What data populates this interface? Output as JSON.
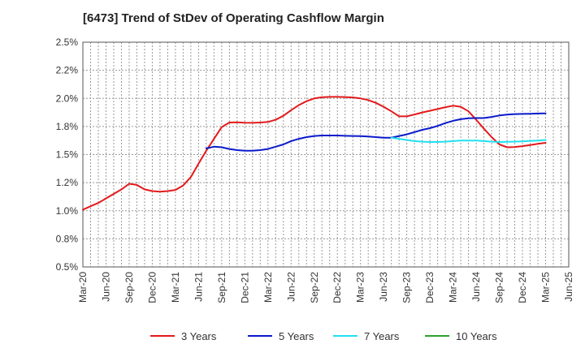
{
  "chart_data": {
    "type": "line",
    "title": "[6473]  Trend of StDev of Operating Cashflow Margin",
    "xlabel": "",
    "ylabel": "",
    "x_ticks": [
      "Mar-20",
      "Jun-20",
      "Sep-20",
      "Dec-20",
      "Mar-21",
      "Jun-21",
      "Sep-21",
      "Dec-21",
      "Mar-22",
      "Jun-22",
      "Sep-22",
      "Dec-22",
      "Mar-23",
      "Jun-23",
      "Sep-23",
      "Dec-23",
      "Mar-24",
      "Jun-24",
      "Sep-24",
      "Dec-24",
      "Mar-25",
      "Jun-25"
    ],
    "y_ticks": [
      "0.5%",
      "0.8%",
      "1.0%",
      "1.2%",
      "1.5%",
      "1.8%",
      "2.0%",
      "2.2%",
      "2.5%"
    ],
    "ylim": [
      0.5,
      2.5
    ],
    "grid": true,
    "legend_position": "bottom",
    "series": [
      {
        "name": "3 Years",
        "color": "#e31a1c",
        "points": [
          [
            "Mar-20",
            1.01
          ],
          [
            "Apr-20",
            1.04
          ],
          [
            "May-20",
            1.07
          ],
          [
            "Jun-20",
            1.11
          ],
          [
            "Jul-20",
            1.15
          ],
          [
            "Aug-20",
            1.19
          ],
          [
            "Sep-20",
            1.24
          ],
          [
            "Oct-20",
            1.23
          ],
          [
            "Nov-20",
            1.19
          ],
          [
            "Dec-20",
            1.175
          ],
          [
            "Jan-21",
            1.17
          ],
          [
            "Feb-21",
            1.175
          ],
          [
            "Mar-21",
            1.185
          ],
          [
            "Apr-21",
            1.225
          ],
          [
            "May-21",
            1.3
          ],
          [
            "Jun-21",
            1.42
          ],
          [
            "Jul-21",
            1.535
          ],
          [
            "Aug-21",
            1.64
          ],
          [
            "Sep-21",
            1.745
          ],
          [
            "Oct-21",
            1.785
          ],
          [
            "Nov-21",
            1.787
          ],
          [
            "Dec-21",
            1.783
          ],
          [
            "Jan-22",
            1.782
          ],
          [
            "Feb-22",
            1.785
          ],
          [
            "Mar-22",
            1.79
          ],
          [
            "Apr-22",
            1.81
          ],
          [
            "May-22",
            1.845
          ],
          [
            "Jun-22",
            1.895
          ],
          [
            "Jul-22",
            1.94
          ],
          [
            "Aug-22",
            1.975
          ],
          [
            "Sep-22",
            2.0
          ],
          [
            "Oct-22",
            2.01
          ],
          [
            "Nov-22",
            2.013
          ],
          [
            "Dec-22",
            2.013
          ],
          [
            "Jan-23",
            2.012
          ],
          [
            "Feb-23",
            2.008
          ],
          [
            "Mar-23",
            2.0
          ],
          [
            "Apr-23",
            1.985
          ],
          [
            "May-23",
            1.96
          ],
          [
            "Jun-23",
            1.925
          ],
          [
            "Jul-23",
            1.885
          ],
          [
            "Aug-23",
            1.84
          ],
          [
            "Sep-23",
            1.84
          ],
          [
            "Oct-23",
            1.857
          ],
          [
            "Nov-23",
            1.875
          ],
          [
            "Dec-23",
            1.89
          ],
          [
            "Jan-24",
            1.905
          ],
          [
            "Feb-24",
            1.922
          ],
          [
            "Mar-24",
            1.935
          ],
          [
            "Apr-24",
            1.925
          ],
          [
            "May-24",
            1.885
          ],
          [
            "Jun-24",
            1.81
          ],
          [
            "Jul-24",
            1.73
          ],
          [
            "Aug-24",
            1.655
          ],
          [
            "Sep-24",
            1.59
          ],
          [
            "Oct-24",
            1.565
          ],
          [
            "Nov-24",
            1.567
          ],
          [
            "Dec-24",
            1.575
          ],
          [
            "Jan-25",
            1.585
          ],
          [
            "Feb-25",
            1.595
          ],
          [
            "Mar-25",
            1.605
          ]
        ]
      },
      {
        "name": "5 Years",
        "color": "#0a1acb",
        "points": [
          [
            "Jul-21",
            1.555
          ],
          [
            "Aug-21",
            1.57
          ],
          [
            "Sep-21",
            1.565
          ],
          [
            "Oct-21",
            1.55
          ],
          [
            "Nov-21",
            1.54
          ],
          [
            "Dec-21",
            1.535
          ],
          [
            "Jan-22",
            1.535
          ],
          [
            "Feb-22",
            1.54
          ],
          [
            "Mar-22",
            1.55
          ],
          [
            "Apr-22",
            1.57
          ],
          [
            "May-22",
            1.59
          ],
          [
            "Jun-22",
            1.62
          ],
          [
            "Jul-22",
            1.64
          ],
          [
            "Aug-22",
            1.655
          ],
          [
            "Sep-22",
            1.665
          ],
          [
            "Oct-22",
            1.67
          ],
          [
            "Nov-22",
            1.67
          ],
          [
            "Dec-22",
            1.67
          ],
          [
            "Jan-23",
            1.667
          ],
          [
            "Feb-23",
            1.665
          ],
          [
            "Mar-23",
            1.664
          ],
          [
            "Apr-23",
            1.66
          ],
          [
            "May-23",
            1.655
          ],
          [
            "Jun-23",
            1.65
          ],
          [
            "Jul-23",
            1.65
          ],
          [
            "Aug-23",
            1.665
          ],
          [
            "Sep-23",
            1.68
          ],
          [
            "Oct-23",
            1.7
          ],
          [
            "Nov-23",
            1.72
          ],
          [
            "Dec-23",
            1.735
          ],
          [
            "Jan-24",
            1.755
          ],
          [
            "Feb-24",
            1.78
          ],
          [
            "Mar-24",
            1.8
          ],
          [
            "Apr-24",
            1.815
          ],
          [
            "May-24",
            1.823
          ],
          [
            "Jun-24",
            1.825
          ],
          [
            "Jul-24",
            1.825
          ],
          [
            "Aug-24",
            1.835
          ],
          [
            "Sep-24",
            1.848
          ],
          [
            "Oct-24",
            1.855
          ],
          [
            "Nov-24",
            1.86
          ],
          [
            "Dec-24",
            1.862
          ],
          [
            "Jan-25",
            1.863
          ],
          [
            "Feb-25",
            1.865
          ],
          [
            "Mar-25",
            1.866
          ]
        ]
      },
      {
        "name": "7 Years",
        "color": "#22e0f0",
        "points": [
          [
            "Jul-23",
            1.65
          ],
          [
            "Aug-23",
            1.64
          ],
          [
            "Sep-23",
            1.63
          ],
          [
            "Oct-23",
            1.62
          ],
          [
            "Nov-23",
            1.615
          ],
          [
            "Dec-23",
            1.612
          ],
          [
            "Jan-24",
            1.612
          ],
          [
            "Feb-24",
            1.615
          ],
          [
            "Mar-24",
            1.62
          ],
          [
            "Apr-24",
            1.625
          ],
          [
            "May-24",
            1.625
          ],
          [
            "Jun-24",
            1.625
          ],
          [
            "Jul-24",
            1.62
          ],
          [
            "Aug-24",
            1.615
          ],
          [
            "Sep-24",
            1.612
          ],
          [
            "Oct-24",
            1.613
          ],
          [
            "Nov-24",
            1.615
          ],
          [
            "Dec-24",
            1.618
          ],
          [
            "Jan-25",
            1.622
          ],
          [
            "Feb-25",
            1.625
          ],
          [
            "Mar-25",
            1.63
          ]
        ]
      },
      {
        "name": "10 Years",
        "color": "#2ca02c",
        "points": []
      }
    ]
  }
}
